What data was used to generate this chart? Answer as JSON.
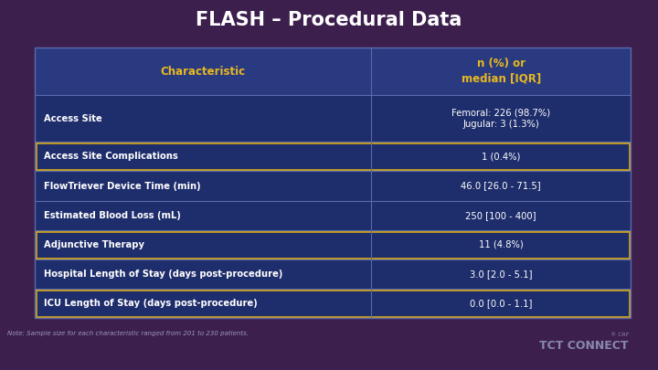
{
  "title": "FLASH – Procedural Data",
  "background_color": "#3d1f4e",
  "table_bg_dark": "#1e2d6b",
  "table_bg_header": "#2a3a80",
  "highlight_border": "#c8a020",
  "header_text_color": "#e8b820",
  "cell_text_color": "#ffffff",
  "grid_line_color": "#5a6aaa",
  "note_text": "Note: Sample size for each characteristic ranged from 201 to 230 patients.",
  "tct_text": "TCT CONNECT",
  "crf_text": "® CRF",
  "col1_header": "Characteristic",
  "col2_header": "n (%) or\nmedian [IQR]",
  "rows": [
    {
      "label": "Access Site",
      "value": "Femoral: 226 (98.7%)\nJugular: 3 (1.3%)",
      "highlight": false
    },
    {
      "label": "Access Site Complications",
      "value": "1 (0.4%)",
      "highlight": true
    },
    {
      "label": "FlowTriever Device Time (min)",
      "value": "46.0 [26.0 - 71.5]",
      "highlight": false
    },
    {
      "label": "Estimated Blood Loss (mL)",
      "value": "250 [100 - 400]",
      "highlight": false
    },
    {
      "label": "Adjunctive Therapy",
      "value": "11 (4.8%)",
      "highlight": true
    },
    {
      "label": "Hospital Length of Stay (days post-procedure)",
      "value": "3.0 [2.0 - 5.1]",
      "highlight": false
    },
    {
      "label": "ICU Length of Stay (days post-procedure)",
      "value": "0.0 [0.0 - 1.1]",
      "highlight": true
    }
  ]
}
